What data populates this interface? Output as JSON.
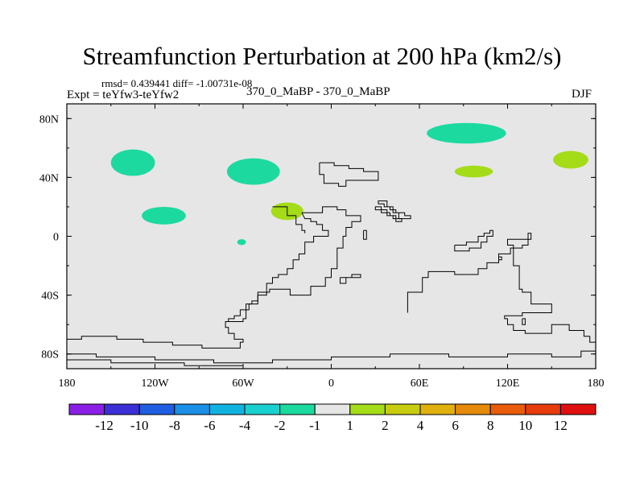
{
  "chart_data": {
    "type": "contour-map",
    "title": "Streamfunction Perturbation at 200 hPa (km2/s)",
    "subtitle_stats": "rmsd= 0.439441 diff= -1.00731e-08",
    "subtitle_left": "Expt = teYfw3-teYfw2",
    "subtitle_center": "370_0_MaBP - 370_0_MaBP",
    "subtitle_right": "DJF",
    "xlim": [
      -180,
      180
    ],
    "ylim": [
      -90,
      90
    ],
    "x_ticks": [
      {
        "value": -180,
        "label": "180"
      },
      {
        "value": -120,
        "label": "120W"
      },
      {
        "value": -60,
        "label": "60W"
      },
      {
        "value": 0,
        "label": "0"
      },
      {
        "value": 60,
        "label": "60E"
      },
      {
        "value": 120,
        "label": "120E"
      },
      {
        "value": 180,
        "label": "180"
      }
    ],
    "y_ticks": [
      {
        "value": 80,
        "label": "80N"
      },
      {
        "value": 40,
        "label": "40N"
      },
      {
        "value": 0,
        "label": "0"
      },
      {
        "value": -40,
        "label": "40S"
      },
      {
        "value": -80,
        "label": "80S"
      }
    ],
    "background_color": "#e6e6e6",
    "colorbar": {
      "labels": [
        "-12",
        "-10",
        "-8",
        "-6",
        "-4",
        "-2",
        "-1",
        "1",
        "2",
        "4",
        "6",
        "8",
        "10",
        "12"
      ],
      "colors": [
        "#8c1fe6",
        "#3c2fd6",
        "#1f5ee0",
        "#1a8fe6",
        "#12b2e0",
        "#1ad0cf",
        "#1cd9a0",
        "#e6e6e6",
        "#a4dc18",
        "#c8cc10",
        "#e0b00e",
        "#e68a0c",
        "#e85c0c",
        "#e63c0e",
        "#e01010"
      ]
    },
    "anomalies": [
      {
        "name": "nw-pacific-negative",
        "lon": -135,
        "lat": 50,
        "rx": 15,
        "ry": 9,
        "color": "#1cd9a0",
        "bin": "-2 to -1"
      },
      {
        "name": "n-america-negative",
        "lon": -53,
        "lat": 44,
        "rx": 18,
        "ry": 9,
        "color": "#1cd9a0",
        "bin": "-2 to -1"
      },
      {
        "name": "e-pacific-negative",
        "lon": -114,
        "lat": 14,
        "rx": 15,
        "ry": 6,
        "color": "#1cd9a0",
        "bin": "-2 to -1"
      },
      {
        "name": "equatorial-negative",
        "lon": -61,
        "lat": -4,
        "rx": 3,
        "ry": 2,
        "color": "#1cd9a0",
        "bin": "-2 to -1"
      },
      {
        "name": "caribbean-positive",
        "lon": -30,
        "lat": 17,
        "rx": 11,
        "ry": 6,
        "color": "#a4dc18",
        "bin": "1 to 2"
      },
      {
        "name": "siberia-negative",
        "lon": 92,
        "lat": 70,
        "rx": 27,
        "ry": 7,
        "color": "#1cd9a0",
        "bin": "-2 to -1"
      },
      {
        "name": "asia-positive",
        "lon": 97,
        "lat": 44,
        "rx": 13,
        "ry": 4,
        "color": "#a4dc18",
        "bin": "1 to 2"
      },
      {
        "name": "nw-pacific-positive",
        "lon": 163,
        "lat": 52,
        "rx": 12,
        "ry": 6,
        "color": "#a4dc18",
        "bin": "1 to 2"
      }
    ],
    "coastlines": [
      [
        [
          -8,
          50
        ],
        [
          2,
          50
        ],
        [
          2,
          48
        ],
        [
          12,
          48
        ],
        [
          12,
          46
        ],
        [
          22,
          46
        ],
        [
          22,
          44
        ],
        [
          32,
          44
        ],
        [
          32,
          38
        ],
        [
          10,
          38
        ],
        [
          10,
          34
        ],
        [
          5,
          34
        ],
        [
          5,
          36
        ],
        [
          -5,
          36
        ],
        [
          -5,
          42
        ],
        [
          -8,
          42
        ],
        [
          -8,
          50
        ]
      ],
      [
        [
          32,
          22
        ],
        [
          36,
          22
        ],
        [
          36,
          20
        ],
        [
          40,
          20
        ],
        [
          40,
          18
        ],
        [
          44,
          18
        ],
        [
          44,
          16
        ],
        [
          50,
          16
        ],
        [
          50,
          14
        ],
        [
          54,
          14
        ],
        [
          54,
          12
        ],
        [
          46,
          12
        ],
        [
          46,
          16
        ],
        [
          42,
          16
        ],
        [
          42,
          20
        ],
        [
          38,
          20
        ],
        [
          38,
          24
        ],
        [
          32,
          24
        ],
        [
          32,
          22
        ]
      ],
      [
        [
          -20,
          16
        ],
        [
          -6,
          16
        ],
        [
          -6,
          20
        ],
        [
          4,
          20
        ],
        [
          4,
          18
        ],
        [
          10,
          18
        ],
        [
          10,
          14
        ],
        [
          20,
          14
        ],
        [
          20,
          10
        ],
        [
          14,
          10
        ],
        [
          14,
          6
        ],
        [
          10,
          6
        ],
        [
          10,
          0
        ],
        [
          8,
          0
        ],
        [
          8,
          -8
        ],
        [
          4,
          -8
        ],
        [
          4,
          -22
        ],
        [
          0,
          -22
        ],
        [
          0,
          -28
        ],
        [
          -4,
          -28
        ],
        [
          -4,
          -34
        ],
        [
          -14,
          -34
        ],
        [
          -14,
          -40
        ],
        [
          -28,
          -40
        ],
        [
          -28,
          -36
        ],
        [
          -42,
          -36
        ],
        [
          -42,
          -38
        ],
        [
          -50,
          -38
        ],
        [
          -50,
          -44
        ],
        [
          -54,
          -44
        ],
        [
          -54,
          -46
        ],
        [
          -58,
          -46
        ],
        [
          -58,
          -56
        ],
        [
          -60,
          -56
        ],
        [
          -60,
          -58
        ],
        [
          -72,
          -58
        ],
        [
          -72,
          -62
        ],
        [
          -70,
          -62
        ],
        [
          -70,
          -66
        ],
        [
          -66,
          -66
        ],
        [
          -66,
          -70
        ],
        [
          -60,
          -70
        ],
        [
          -60,
          -72
        ],
        [
          -62,
          -72
        ],
        [
          -62,
          -76
        ],
        [
          -88,
          -76
        ],
        [
          -88,
          -74
        ],
        [
          -108,
          -74
        ],
        [
          -108,
          -72
        ],
        [
          -128,
          -72
        ],
        [
          -128,
          -70
        ],
        [
          -146,
          -70
        ],
        [
          -146,
          -68
        ],
        [
          -170,
          -68
        ],
        [
          -170,
          -70
        ],
        [
          -180,
          -70
        ]
      ],
      [
        [
          -20,
          16
        ],
        [
          -18,
          12
        ],
        [
          -14,
          12
        ],
        [
          -14,
          10
        ],
        [
          -10,
          10
        ],
        [
          -10,
          8
        ],
        [
          -6,
          8
        ],
        [
          -6,
          4
        ],
        [
          -2,
          4
        ],
        [
          -2,
          0
        ],
        [
          -12,
          0
        ],
        [
          -12,
          -4
        ],
        [
          -18,
          -4
        ],
        [
          -18,
          -12
        ],
        [
          -22,
          -12
        ],
        [
          -22,
          -16
        ],
        [
          -26,
          -16
        ],
        [
          -26,
          -22
        ],
        [
          -30,
          -22
        ],
        [
          -30,
          -26
        ],
        [
          -36,
          -26
        ],
        [
          -36,
          -28
        ],
        [
          -40,
          -28
        ],
        [
          -40,
          -32
        ],
        [
          -44,
          -32
        ],
        [
          -44,
          -40
        ],
        [
          -50,
          -40
        ],
        [
          -50,
          -46
        ],
        [
          -56,
          -46
        ],
        [
          -56,
          -50
        ],
        [
          -62,
          -50
        ],
        [
          -62,
          -54
        ],
        [
          -66,
          -54
        ],
        [
          -66,
          -56
        ],
        [
          -70,
          -56
        ],
        [
          -70,
          -58
        ],
        [
          -72,
          -58
        ]
      ],
      [
        [
          -40,
          20
        ],
        [
          -30,
          20
        ],
        [
          -30,
          14
        ],
        [
          -24,
          14
        ],
        [
          -24,
          8
        ],
        [
          -20,
          8
        ],
        [
          -20,
          4
        ],
        [
          -18,
          4
        ],
        [
          -18,
          2
        ]
      ],
      [
        [
          6,
          -28
        ],
        [
          14,
          -28
        ],
        [
          14,
          -26
        ],
        [
          20,
          -26
        ],
        [
          20,
          -28
        ],
        [
          10,
          -28
        ],
        [
          10,
          -32
        ],
        [
          6,
          -32
        ],
        [
          6,
          -28
        ]
      ],
      [
        [
          22,
          4
        ],
        [
          24,
          4
        ],
        [
          24,
          -2
        ],
        [
          22,
          -2
        ],
        [
          22,
          4
        ]
      ],
      [
        [
          31,
          20
        ],
        [
          34,
          20
        ],
        [
          34,
          18
        ],
        [
          38,
          18
        ],
        [
          38,
          14
        ],
        [
          42,
          14
        ],
        [
          42,
          12
        ],
        [
          48,
          12
        ],
        [
          48,
          10
        ],
        [
          44,
          10
        ],
        [
          44,
          14
        ],
        [
          40,
          14
        ],
        [
          40,
          16
        ],
        [
          34,
          16
        ],
        [
          34,
          18
        ],
        [
          30,
          18
        ],
        [
          30,
          20
        ],
        [
          31,
          20
        ]
      ],
      [
        [
          52,
          -52
        ],
        [
          52,
          -38
        ],
        [
          62,
          -38
        ],
        [
          62,
          -28
        ],
        [
          66,
          -28
        ],
        [
          66,
          -24
        ],
        [
          84,
          -24
        ],
        [
          84,
          -26
        ],
        [
          100,
          -26
        ],
        [
          100,
          -22
        ],
        [
          106,
          -22
        ],
        [
          106,
          -18
        ],
        [
          114,
          -18
        ],
        [
          114,
          -12
        ],
        [
          122,
          -12
        ],
        [
          122,
          -8
        ],
        [
          130,
          -8
        ],
        [
          130,
          -6
        ],
        [
          134,
          -6
        ],
        [
          134,
          -2
        ],
        [
          136,
          -2
        ],
        [
          136,
          2
        ],
        [
          134,
          2
        ],
        [
          134,
          -2
        ],
        [
          120,
          -2
        ],
        [
          120,
          -6
        ],
        [
          124,
          -6
        ],
        [
          124,
          -20
        ],
        [
          128,
          -20
        ],
        [
          128,
          -36
        ],
        [
          130,
          -36
        ],
        [
          130,
          -38
        ],
        [
          136,
          -38
        ],
        [
          136,
          -46
        ],
        [
          150,
          -46
        ],
        [
          150,
          -52
        ],
        [
          130,
          -52
        ],
        [
          130,
          -54
        ],
        [
          118,
          -54
        ],
        [
          118,
          -56
        ],
        [
          120,
          -56
        ],
        [
          120,
          -60
        ],
        [
          124,
          -60
        ],
        [
          124,
          -64
        ],
        [
          132,
          -64
        ],
        [
          132,
          -66
        ],
        [
          150,
          -66
        ],
        [
          150,
          -60
        ],
        [
          162,
          -60
        ],
        [
          162,
          -64
        ],
        [
          172,
          -64
        ],
        [
          172,
          -68
        ],
        [
          176,
          -68
        ],
        [
          176,
          -72
        ],
        [
          180,
          -72
        ]
      ],
      [
        [
          84,
          -6
        ],
        [
          92,
          -6
        ],
        [
          92,
          -4
        ],
        [
          100,
          -4
        ],
        [
          100,
          0
        ],
        [
          104,
          0
        ],
        [
          104,
          2
        ],
        [
          108,
          2
        ],
        [
          108,
          4
        ],
        [
          110,
          4
        ],
        [
          110,
          0
        ],
        [
          106,
          0
        ],
        [
          106,
          -4
        ],
        [
          102,
          -4
        ],
        [
          102,
          -8
        ],
        [
          94,
          -8
        ],
        [
          94,
          -10
        ],
        [
          84,
          -10
        ],
        [
          84,
          -6
        ]
      ],
      [
        [
          114,
          -14
        ],
        [
          116,
          -14
        ],
        [
          116,
          -16
        ],
        [
          114,
          -16
        ],
        [
          114,
          -14
        ]
      ],
      [
        [
          130,
          -56
        ],
        [
          132,
          -56
        ],
        [
          132,
          -60
        ],
        [
          130,
          -60
        ],
        [
          130,
          -56
        ]
      ],
      [
        [
          -180,
          -80
        ],
        [
          -160,
          -80
        ],
        [
          -160,
          -82
        ],
        [
          -120,
          -82
        ],
        [
          -120,
          -84
        ],
        [
          -80,
          -84
        ],
        [
          -80,
          -86
        ],
        [
          -40,
          -86
        ],
        [
          -40,
          -84
        ],
        [
          0,
          -84
        ],
        [
          0,
          -82
        ],
        [
          40,
          -82
        ],
        [
          40,
          -80
        ],
        [
          80,
          -80
        ],
        [
          80,
          -82
        ],
        [
          120,
          -82
        ],
        [
          120,
          -80
        ],
        [
          150,
          -80
        ],
        [
          150,
          -82
        ],
        [
          170,
          -82
        ],
        [
          170,
          -78
        ],
        [
          180,
          -78
        ]
      ],
      [
        [
          -180,
          -84
        ],
        [
          -150,
          -84
        ],
        [
          -150,
          -86
        ],
        [
          -100,
          -86
        ],
        [
          -100,
          -88
        ],
        [
          -60,
          -88
        ],
        [
          -60,
          -90
        ]
      ]
    ]
  }
}
